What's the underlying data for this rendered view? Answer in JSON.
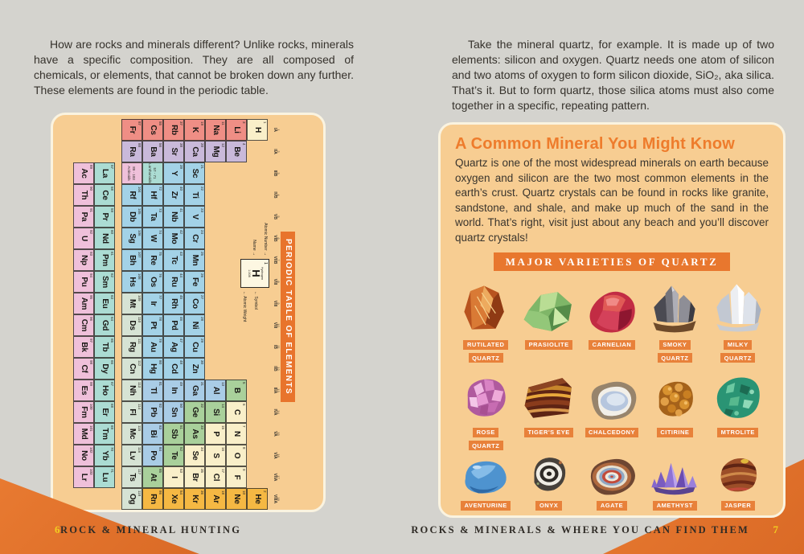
{
  "colors": {
    "page_bg": "#d4d3ce",
    "panel_bg": "#f7cd92",
    "accent_orange": "#e8772e",
    "corner_orange": "#e0702a",
    "page_number_yellow": "#f2cf1f",
    "heading_orange": "#ee7c2c"
  },
  "left_page": {
    "intro": "How are rocks and minerals different? Unlike rocks, minerals have a specific composition. They are all composed of chemicals, or elements, that cannot be broken down any further. These elements are found in the periodic table.",
    "footer": "ROCK & MINERAL HUNTING",
    "page_number": "6",
    "periodic_table": {
      "title": "PERIODIC TABLE OF ELEMENTS",
      "legend": {
        "atomic_number_label": "Atomic Number →",
        "name_label": "Name →",
        "symbol_label": "← Symbol",
        "atomic_weight_label": "← Atomic Weight",
        "example": {
          "number": "1",
          "name": "Hydrogen",
          "symbol": "H",
          "weight": "1.008"
        }
      },
      "group_labels": [
        [
          "1",
          "IA"
        ],
        [
          "2",
          "IIA"
        ],
        [
          "3",
          "IIIB"
        ],
        [
          "4",
          "IVB"
        ],
        [
          "5",
          "VB"
        ],
        [
          "6",
          "VIB"
        ],
        [
          "7",
          "VIIB"
        ],
        [
          "8",
          "VIII"
        ],
        [
          "9",
          "VIII"
        ],
        [
          "10",
          "VIII"
        ],
        [
          "11",
          "IB"
        ],
        [
          "12",
          "IIB"
        ],
        [
          "13",
          "IIIA"
        ],
        [
          "14",
          "IVA"
        ],
        [
          "15",
          "VA"
        ],
        [
          "16",
          "VIA"
        ],
        [
          "17",
          "VIIA"
        ],
        [
          "18",
          "VIIIA"
        ]
      ],
      "category_colors": {
        "ak": "#ef8e85",
        "ae": "#c9b9da",
        "tm": "#a3d2e7",
        "pt": "#a9cce6",
        "md": "#a9d09b",
        "nm": "#f9efc9",
        "ng": "#f5b843",
        "un": "#d6e3d4",
        "la": "#abdcd3",
        "ac": "#efc0da"
      },
      "placeholders": {
        "lanthanoids": {
          "range": "57 - 71",
          "label": "Lanthanoids"
        },
        "actinoids": {
          "range": "89 - 103",
          "label": "Actinoids"
        }
      },
      "elements": [
        [
          1,
          "H",
          1,
          0,
          "nm"
        ],
        [
          2,
          "He",
          1,
          17,
          "ng"
        ],
        [
          3,
          "Li",
          2,
          0,
          "ak"
        ],
        [
          4,
          "Be",
          2,
          1,
          "ae"
        ],
        [
          5,
          "B",
          2,
          12,
          "md"
        ],
        [
          6,
          "C",
          2,
          13,
          "nm"
        ],
        [
          7,
          "N",
          2,
          14,
          "nm"
        ],
        [
          8,
          "O",
          2,
          15,
          "nm"
        ],
        [
          9,
          "F",
          2,
          16,
          "nm"
        ],
        [
          10,
          "Ne",
          2,
          17,
          "ng"
        ],
        [
          11,
          "Na",
          3,
          0,
          "ak"
        ],
        [
          12,
          "Mg",
          3,
          1,
          "ae"
        ],
        [
          13,
          "Al",
          3,
          12,
          "pt"
        ],
        [
          14,
          "Si",
          3,
          13,
          "md"
        ],
        [
          15,
          "P",
          3,
          14,
          "nm"
        ],
        [
          16,
          "S",
          3,
          15,
          "nm"
        ],
        [
          17,
          "Cl",
          3,
          16,
          "nm"
        ],
        [
          18,
          "Ar",
          3,
          17,
          "ng"
        ],
        [
          19,
          "K",
          4,
          0,
          "ak"
        ],
        [
          20,
          "Ca",
          4,
          1,
          "ae"
        ],
        [
          21,
          "Sc",
          4,
          2,
          "tm"
        ],
        [
          22,
          "Ti",
          4,
          3,
          "tm"
        ],
        [
          23,
          "V",
          4,
          4,
          "tm"
        ],
        [
          24,
          "Cr",
          4,
          5,
          "tm"
        ],
        [
          25,
          "Mn",
          4,
          6,
          "tm"
        ],
        [
          26,
          "Fe",
          4,
          7,
          "tm"
        ],
        [
          27,
          "Co",
          4,
          8,
          "tm"
        ],
        [
          28,
          "Ni",
          4,
          9,
          "tm"
        ],
        [
          29,
          "Cu",
          4,
          10,
          "tm"
        ],
        [
          30,
          "Zn",
          4,
          11,
          "tm"
        ],
        [
          31,
          "Ga",
          4,
          12,
          "pt"
        ],
        [
          32,
          "Ge",
          4,
          13,
          "md"
        ],
        [
          33,
          "As",
          4,
          14,
          "md"
        ],
        [
          34,
          "Se",
          4,
          15,
          "nm"
        ],
        [
          35,
          "Br",
          4,
          16,
          "nm"
        ],
        [
          36,
          "Kr",
          4,
          17,
          "ng"
        ],
        [
          37,
          "Rb",
          5,
          0,
          "ak"
        ],
        [
          38,
          "Sr",
          5,
          1,
          "ae"
        ],
        [
          39,
          "Y",
          5,
          2,
          "tm"
        ],
        [
          40,
          "Zr",
          5,
          3,
          "tm"
        ],
        [
          41,
          "Nb",
          5,
          4,
          "tm"
        ],
        [
          42,
          "Mo",
          5,
          5,
          "tm"
        ],
        [
          43,
          "Tc",
          5,
          6,
          "tm"
        ],
        [
          44,
          "Ru",
          5,
          7,
          "tm"
        ],
        [
          45,
          "Rh",
          5,
          8,
          "tm"
        ],
        [
          46,
          "Pd",
          5,
          9,
          "tm"
        ],
        [
          47,
          "Ag",
          5,
          10,
          "tm"
        ],
        [
          48,
          "Cd",
          5,
          11,
          "tm"
        ],
        [
          49,
          "In",
          5,
          12,
          "pt"
        ],
        [
          50,
          "Sn",
          5,
          13,
          "pt"
        ],
        [
          51,
          "Sb",
          5,
          14,
          "md"
        ],
        [
          52,
          "Te",
          5,
          15,
          "md"
        ],
        [
          53,
          "I",
          5,
          16,
          "nm"
        ],
        [
          54,
          "Xe",
          5,
          17,
          "ng"
        ],
        [
          55,
          "Cs",
          6,
          0,
          "ak"
        ],
        [
          56,
          "Ba",
          6,
          1,
          "ae"
        ],
        [
          72,
          "Hf",
          6,
          3,
          "tm"
        ],
        [
          73,
          "Ta",
          6,
          4,
          "tm"
        ],
        [
          74,
          "W",
          6,
          5,
          "tm"
        ],
        [
          75,
          "Re",
          6,
          6,
          "tm"
        ],
        [
          76,
          "Os",
          6,
          7,
          "tm"
        ],
        [
          77,
          "Ir",
          6,
          8,
          "tm"
        ],
        [
          78,
          "Pt",
          6,
          9,
          "tm"
        ],
        [
          79,
          "Au",
          6,
          10,
          "tm"
        ],
        [
          80,
          "Hg",
          6,
          11,
          "tm"
        ],
        [
          81,
          "Tl",
          6,
          12,
          "pt"
        ],
        [
          82,
          "Pb",
          6,
          13,
          "pt"
        ],
        [
          83,
          "Bi",
          6,
          14,
          "pt"
        ],
        [
          84,
          "Po",
          6,
          15,
          "pt"
        ],
        [
          85,
          "At",
          6,
          16,
          "md"
        ],
        [
          86,
          "Rn",
          6,
          17,
          "ng"
        ],
        [
          87,
          "Fr",
          7,
          0,
          "ak"
        ],
        [
          88,
          "Ra",
          7,
          1,
          "ae"
        ],
        [
          104,
          "Rf",
          7,
          3,
          "tm"
        ],
        [
          105,
          "Db",
          7,
          4,
          "tm"
        ],
        [
          106,
          "Sg",
          7,
          5,
          "tm"
        ],
        [
          107,
          "Bh",
          7,
          6,
          "tm"
        ],
        [
          108,
          "Hs",
          7,
          7,
          "tm"
        ],
        [
          109,
          "Mt",
          7,
          8,
          "un"
        ],
        [
          110,
          "Ds",
          7,
          9,
          "un"
        ],
        [
          111,
          "Rg",
          7,
          10,
          "un"
        ],
        [
          112,
          "Cn",
          7,
          11,
          "un"
        ],
        [
          113,
          "Nh",
          7,
          12,
          "un"
        ],
        [
          114,
          "Fl",
          7,
          13,
          "un"
        ],
        [
          115,
          "Mc",
          7,
          14,
          "un"
        ],
        [
          116,
          "Lv",
          7,
          15,
          "un"
        ],
        [
          117,
          "Ts",
          7,
          16,
          "un"
        ],
        [
          118,
          "Og",
          7,
          17,
          "un"
        ]
      ],
      "lanthanoids": [
        [
          57,
          "La"
        ],
        [
          58,
          "Ce"
        ],
        [
          59,
          "Pr"
        ],
        [
          60,
          "Nd"
        ],
        [
          61,
          "Pm"
        ],
        [
          62,
          "Sm"
        ],
        [
          63,
          "Eu"
        ],
        [
          64,
          "Gd"
        ],
        [
          65,
          "Tb"
        ],
        [
          66,
          "Dy"
        ],
        [
          67,
          "Ho"
        ],
        [
          68,
          "Er"
        ],
        [
          69,
          "Tm"
        ],
        [
          70,
          "Yb"
        ],
        [
          71,
          "Lu"
        ]
      ],
      "actinoids": [
        [
          89,
          "Ac"
        ],
        [
          90,
          "Th"
        ],
        [
          91,
          "Pa"
        ],
        [
          92,
          "U"
        ],
        [
          93,
          "Np"
        ],
        [
          94,
          "Pu"
        ],
        [
          95,
          "Am"
        ],
        [
          96,
          "Cm"
        ],
        [
          97,
          "Bk"
        ],
        [
          98,
          "Cf"
        ],
        [
          99,
          "Es"
        ],
        [
          100,
          "Fm"
        ],
        [
          101,
          "Md"
        ],
        [
          102,
          "No"
        ],
        [
          103,
          "Lr"
        ]
      ]
    }
  },
  "right_page": {
    "intro": "Take the mineral quartz, for example. It is made up of two elements: silicon and oxygen. Quartz needs one atom of silicon and two atoms of oxygen to form silicon dioxide, SiO₂, aka silica. That’s it. But to form quartz, those silica atoms must also come together in a specific, repeating pattern.",
    "box": {
      "heading": "A Common Mineral You Might Know",
      "body": "Quartz is one of the most widespread minerals on earth because oxygen and silicon are the two most common elements in the earth’s crust. Quartz crystals can be found in rocks like granite, sandstone, and shale, and make up much of the sand in the world. That’s right, visit just about any beach and you’ll discover quartz crystals!",
      "banner": "MAJOR VARIETIES OF QUARTZ",
      "minerals": [
        {
          "name": "Rutilated Quartz",
          "lines": [
            "RUTILATED",
            "QUARTZ"
          ]
        },
        {
          "name": "Prasiolite",
          "lines": [
            "PRASIOLITE"
          ]
        },
        {
          "name": "Carnelian",
          "lines": [
            "CARNELIAN"
          ]
        },
        {
          "name": "Smoky Quartz",
          "lines": [
            "SMOKY",
            "QUARTZ"
          ]
        },
        {
          "name": "Milky Quartz",
          "lines": [
            "MILKY",
            "QUARTZ"
          ]
        },
        {
          "name": "Rose Quartz",
          "lines": [
            "ROSE",
            "QUARTZ"
          ]
        },
        {
          "name": "Tiger's Eye",
          "lines": [
            "TIGER'S EYE"
          ]
        },
        {
          "name": "Chalcedony",
          "lines": [
            "CHALCEDONY"
          ]
        },
        {
          "name": "Citirine",
          "lines": [
            "CITIRINE"
          ]
        },
        {
          "name": "Mtrolite",
          "lines": [
            "MTROLITE"
          ]
        },
        {
          "name": "Aventurine",
          "lines": [
            "AVENTURINE"
          ]
        },
        {
          "name": "Onyx",
          "lines": [
            "ONYX"
          ]
        },
        {
          "name": "Agate",
          "lines": [
            "AGATE"
          ]
        },
        {
          "name": "Amethyst",
          "lines": [
            "AMETHYST"
          ]
        },
        {
          "name": "Jasper",
          "lines": [
            "JASPER"
          ]
        }
      ]
    },
    "footer": "ROCKS & MINERALS & WHERE YOU CAN FIND THEM",
    "page_number": "7"
  }
}
